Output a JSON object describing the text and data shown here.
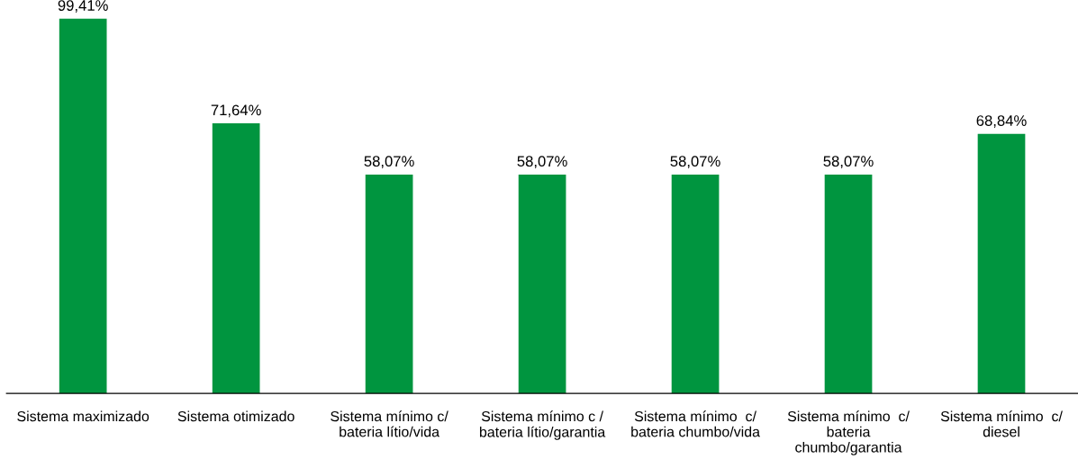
{
  "chart_data": {
    "type": "bar",
    "categories": [
      "Sistema maximizado",
      "Sistema otimizado",
      "Sistema mínimo c/\nbateria lítio/vida",
      "Sistema mínimo c /\nbateria lítio/garantia",
      "Sistema mínimo  c/\nbateria chumbo/vida",
      "Sistema mínimo  c/\nbateria\nchumbo/garantia",
      "Sistema mínimo  c/\ndiesel"
    ],
    "values": [
      99.41,
      71.64,
      58.07,
      58.07,
      58.07,
      58.07,
      68.84
    ],
    "value_labels": [
      "99,41%",
      "71,64%",
      "58,07%",
      "58,07%",
      "58,07%",
      "58,07%",
      "68,84%"
    ],
    "color": "#00953f",
    "grid": false,
    "legend": false
  }
}
